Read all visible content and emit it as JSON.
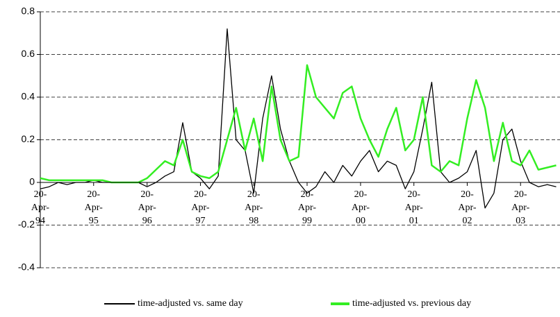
{
  "chart_data": {
    "type": "line",
    "x": [
      "1994-04-20",
      "1994-06-20",
      "1994-08-20",
      "1994-10-20",
      "1994-12-20",
      "1995-02-20",
      "1995-04-20",
      "1995-06-20",
      "1995-08-20",
      "1995-10-20",
      "1995-12-20",
      "1996-02-20",
      "1996-04-20",
      "1996-06-20",
      "1996-08-20",
      "1996-10-20",
      "1996-12-20",
      "1997-02-20",
      "1997-04-20",
      "1997-06-20",
      "1997-08-20",
      "1997-10-20",
      "1997-12-20",
      "1998-02-20",
      "1998-04-20",
      "1998-06-20",
      "1998-08-20",
      "1998-10-20",
      "1998-12-20",
      "1999-02-20",
      "1999-04-20",
      "1999-06-20",
      "1999-08-20",
      "1999-10-20",
      "1999-12-20",
      "2000-02-20",
      "2000-04-20",
      "2000-06-20",
      "2000-08-20",
      "2000-10-20",
      "2000-12-20",
      "2001-02-20",
      "2001-04-20",
      "2001-06-20",
      "2001-08-20",
      "2001-10-20",
      "2001-12-20",
      "2002-02-20",
      "2002-04-20",
      "2002-06-20",
      "2002-08-20",
      "2002-10-20",
      "2002-12-20",
      "2003-02-20",
      "2003-04-20",
      "2003-06-20",
      "2003-08-20",
      "2003-10-20",
      "2003-12-20"
    ],
    "series": [
      {
        "name": "time-adjusted vs. same day",
        "color": "#000000",
        "values": [
          -0.03,
          -0.02,
          0.0,
          -0.01,
          0.0,
          0.0,
          0.01,
          0.0,
          0.0,
          0.0,
          0.0,
          0.0,
          -0.02,
          0.0,
          0.03,
          0.05,
          0.28,
          0.05,
          0.02,
          -0.03,
          0.03,
          0.72,
          0.2,
          0.15,
          -0.05,
          0.3,
          0.5,
          0.25,
          0.1,
          0.0,
          -0.05,
          -0.02,
          0.05,
          0.0,
          0.08,
          0.03,
          0.1,
          0.15,
          0.05,
          0.1,
          0.08,
          -0.03,
          0.05,
          0.25,
          0.47,
          0.05,
          0.0,
          0.02,
          0.05,
          0.15,
          -0.12,
          -0.05,
          0.2,
          0.25,
          0.1,
          0.0,
          -0.02,
          -0.01,
          -0.02
        ]
      },
      {
        "name": "time-adjusted vs. previous day",
        "color": "#33ee22",
        "values": [
          0.02,
          0.01,
          0.01,
          0.01,
          0.01,
          0.01,
          0.01,
          0.01,
          0.0,
          0.0,
          0.0,
          0.0,
          0.02,
          0.06,
          0.1,
          0.08,
          0.2,
          0.05,
          0.03,
          0.02,
          0.05,
          0.2,
          0.35,
          0.15,
          0.3,
          0.1,
          0.45,
          0.2,
          0.1,
          0.12,
          0.55,
          0.4,
          0.35,
          0.3,
          0.42,
          0.45,
          0.3,
          0.2,
          0.12,
          0.25,
          0.35,
          0.15,
          0.2,
          0.4,
          0.08,
          0.05,
          0.1,
          0.08,
          0.3,
          0.48,
          0.35,
          0.1,
          0.28,
          0.1,
          0.08,
          0.15,
          0.06,
          0.07,
          0.08
        ]
      }
    ],
    "xlim": [
      "1994-04-20",
      "2004-01-15"
    ],
    "xticks": [
      {
        "value": "1994-04-20",
        "label": "20-Apr-94"
      },
      {
        "value": "1995-04-20",
        "label": "20-Apr-95"
      },
      {
        "value": "1996-04-20",
        "label": "20-Apr-96"
      },
      {
        "value": "1997-04-20",
        "label": "20-Apr-97"
      },
      {
        "value": "1998-04-20",
        "label": "20-Apr-98"
      },
      {
        "value": "1999-04-20",
        "label": "20-Apr-99"
      },
      {
        "value": "2000-04-20",
        "label": "20-Apr-00"
      },
      {
        "value": "2001-04-20",
        "label": "20-Apr-01"
      },
      {
        "value": "2002-04-20",
        "label": "20-Apr-02"
      },
      {
        "value": "2003-04-20",
        "label": "20-Apr-03"
      }
    ],
    "ylim": [
      -0.4,
      0.8
    ],
    "yticks": [
      -0.4,
      -0.2,
      0,
      0.2,
      0.4,
      0.6,
      0.8
    ],
    "grid": true
  }
}
